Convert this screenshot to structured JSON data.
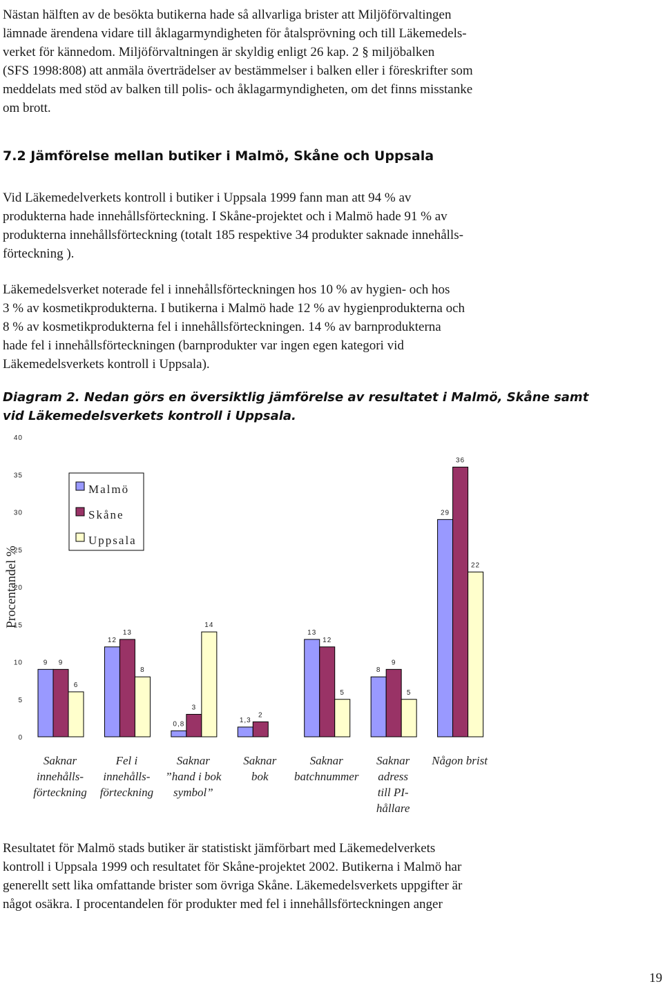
{
  "paragraphs": [
    [
      "Nästan hälften av de besökta butikerna hade så allvarliga brister att Miljöförvaltingen",
      "lämnade ärendena vidare till åklagarmyndigheten för åtalsprövning och till Läkemedels-",
      "verket för kännedom. Miljöförvaltningen är skyldig enligt 26 kap. 2 § miljöbalken",
      "(SFS 1998:808) att anmäla överträdelser av bestämmelser i balken eller i föreskrifter som",
      "meddelats med stöd av balken till polis- och åklagarmyndigheten, om det finns misstanke",
      "om brott."
    ],
    [
      "Vid Läkemedelverkets kontroll i butiker i Uppsala 1999 fann man att 94 % av",
      "produkterna hade innehållsförteckning. I Skåne-projektet och i Malmö hade 91 % av",
      "produkterna innehållsförteckning (totalt 185 respektive 34 produkter saknade innehålls-",
      "förteckning )."
    ],
    [
      "Läkemedelsverket noterade fel i innehållsförteckningen hos 10 % av hygien- och hos",
      "3 % av kosmetikprodukterna. I butikerna i Malmö hade 12 % av hygienprodukterna och",
      "8 % av kosmetikprodukterna fel i innehållsförteckningen. 14 % av barnprodukterna",
      "hade fel i innehållsförteckningen (barnprodukter var ingen egen kategori vid",
      "Läkemedelsverkets kontroll i Uppsala)."
    ],
    [
      "Resultatet för Malmö stads butiker är statistiskt jämförbart med Läkemedelverkets",
      "kontroll i Uppsala 1999 och resultatet för Skåne-projektet 2002. Butikerna i Malmö har",
      "generellt sett lika omfattande brister som övriga Skåne. Läkemedelsverkets uppgifter är",
      "något osäkra. I procentandelen för produkter med fel i innehållsförteckningen anger"
    ]
  ],
  "heading": "7.2 Jämförelse mellan butiker i Malmö, Skåne och Uppsala",
  "caption": [
    "Diagram 2. Nedan görs en översiktlig jämförelse av resultatet i Malmö, Skåne samt",
    "vid Läkemedelsverkets kontroll i Uppsala."
  ],
  "chart_data": {
    "type": "bar",
    "y_label": "Procentandel %",
    "categories": [
      "Saknar\ninnehålls-\nförteckning",
      "Fel i\ninnehålls-\nförteckning",
      "Saknar\n”hand i bok\nsymbol”",
      "Saknar\nbok",
      "Saknar\nbatchnummer",
      "Saknar\nadress\ntill PI-\nhållare",
      "Någon brist"
    ],
    "series": [
      {
        "name": "Malmö",
        "color": "#9999ff",
        "values": [
          9,
          12,
          0.8,
          1.3,
          13,
          8,
          29
        ],
        "value_labels": [
          "9",
          "12",
          "0,8",
          "1,3",
          "13",
          "8",
          "29"
        ]
      },
      {
        "name": "Skåne",
        "color": "#993366",
        "values": [
          9,
          13,
          3,
          2,
          12,
          9,
          36
        ]
      },
      {
        "name": "Uppsala",
        "color": "#ffffcc",
        "values": [
          6,
          8,
          14,
          null,
          5,
          5,
          22
        ]
      }
    ],
    "ylim": [
      0,
      40
    ],
    "yticks": [
      0,
      5,
      10,
      15,
      20,
      25,
      30,
      35,
      40
    ],
    "grid": false,
    "legend": "upper left"
  },
  "page_number": "19"
}
